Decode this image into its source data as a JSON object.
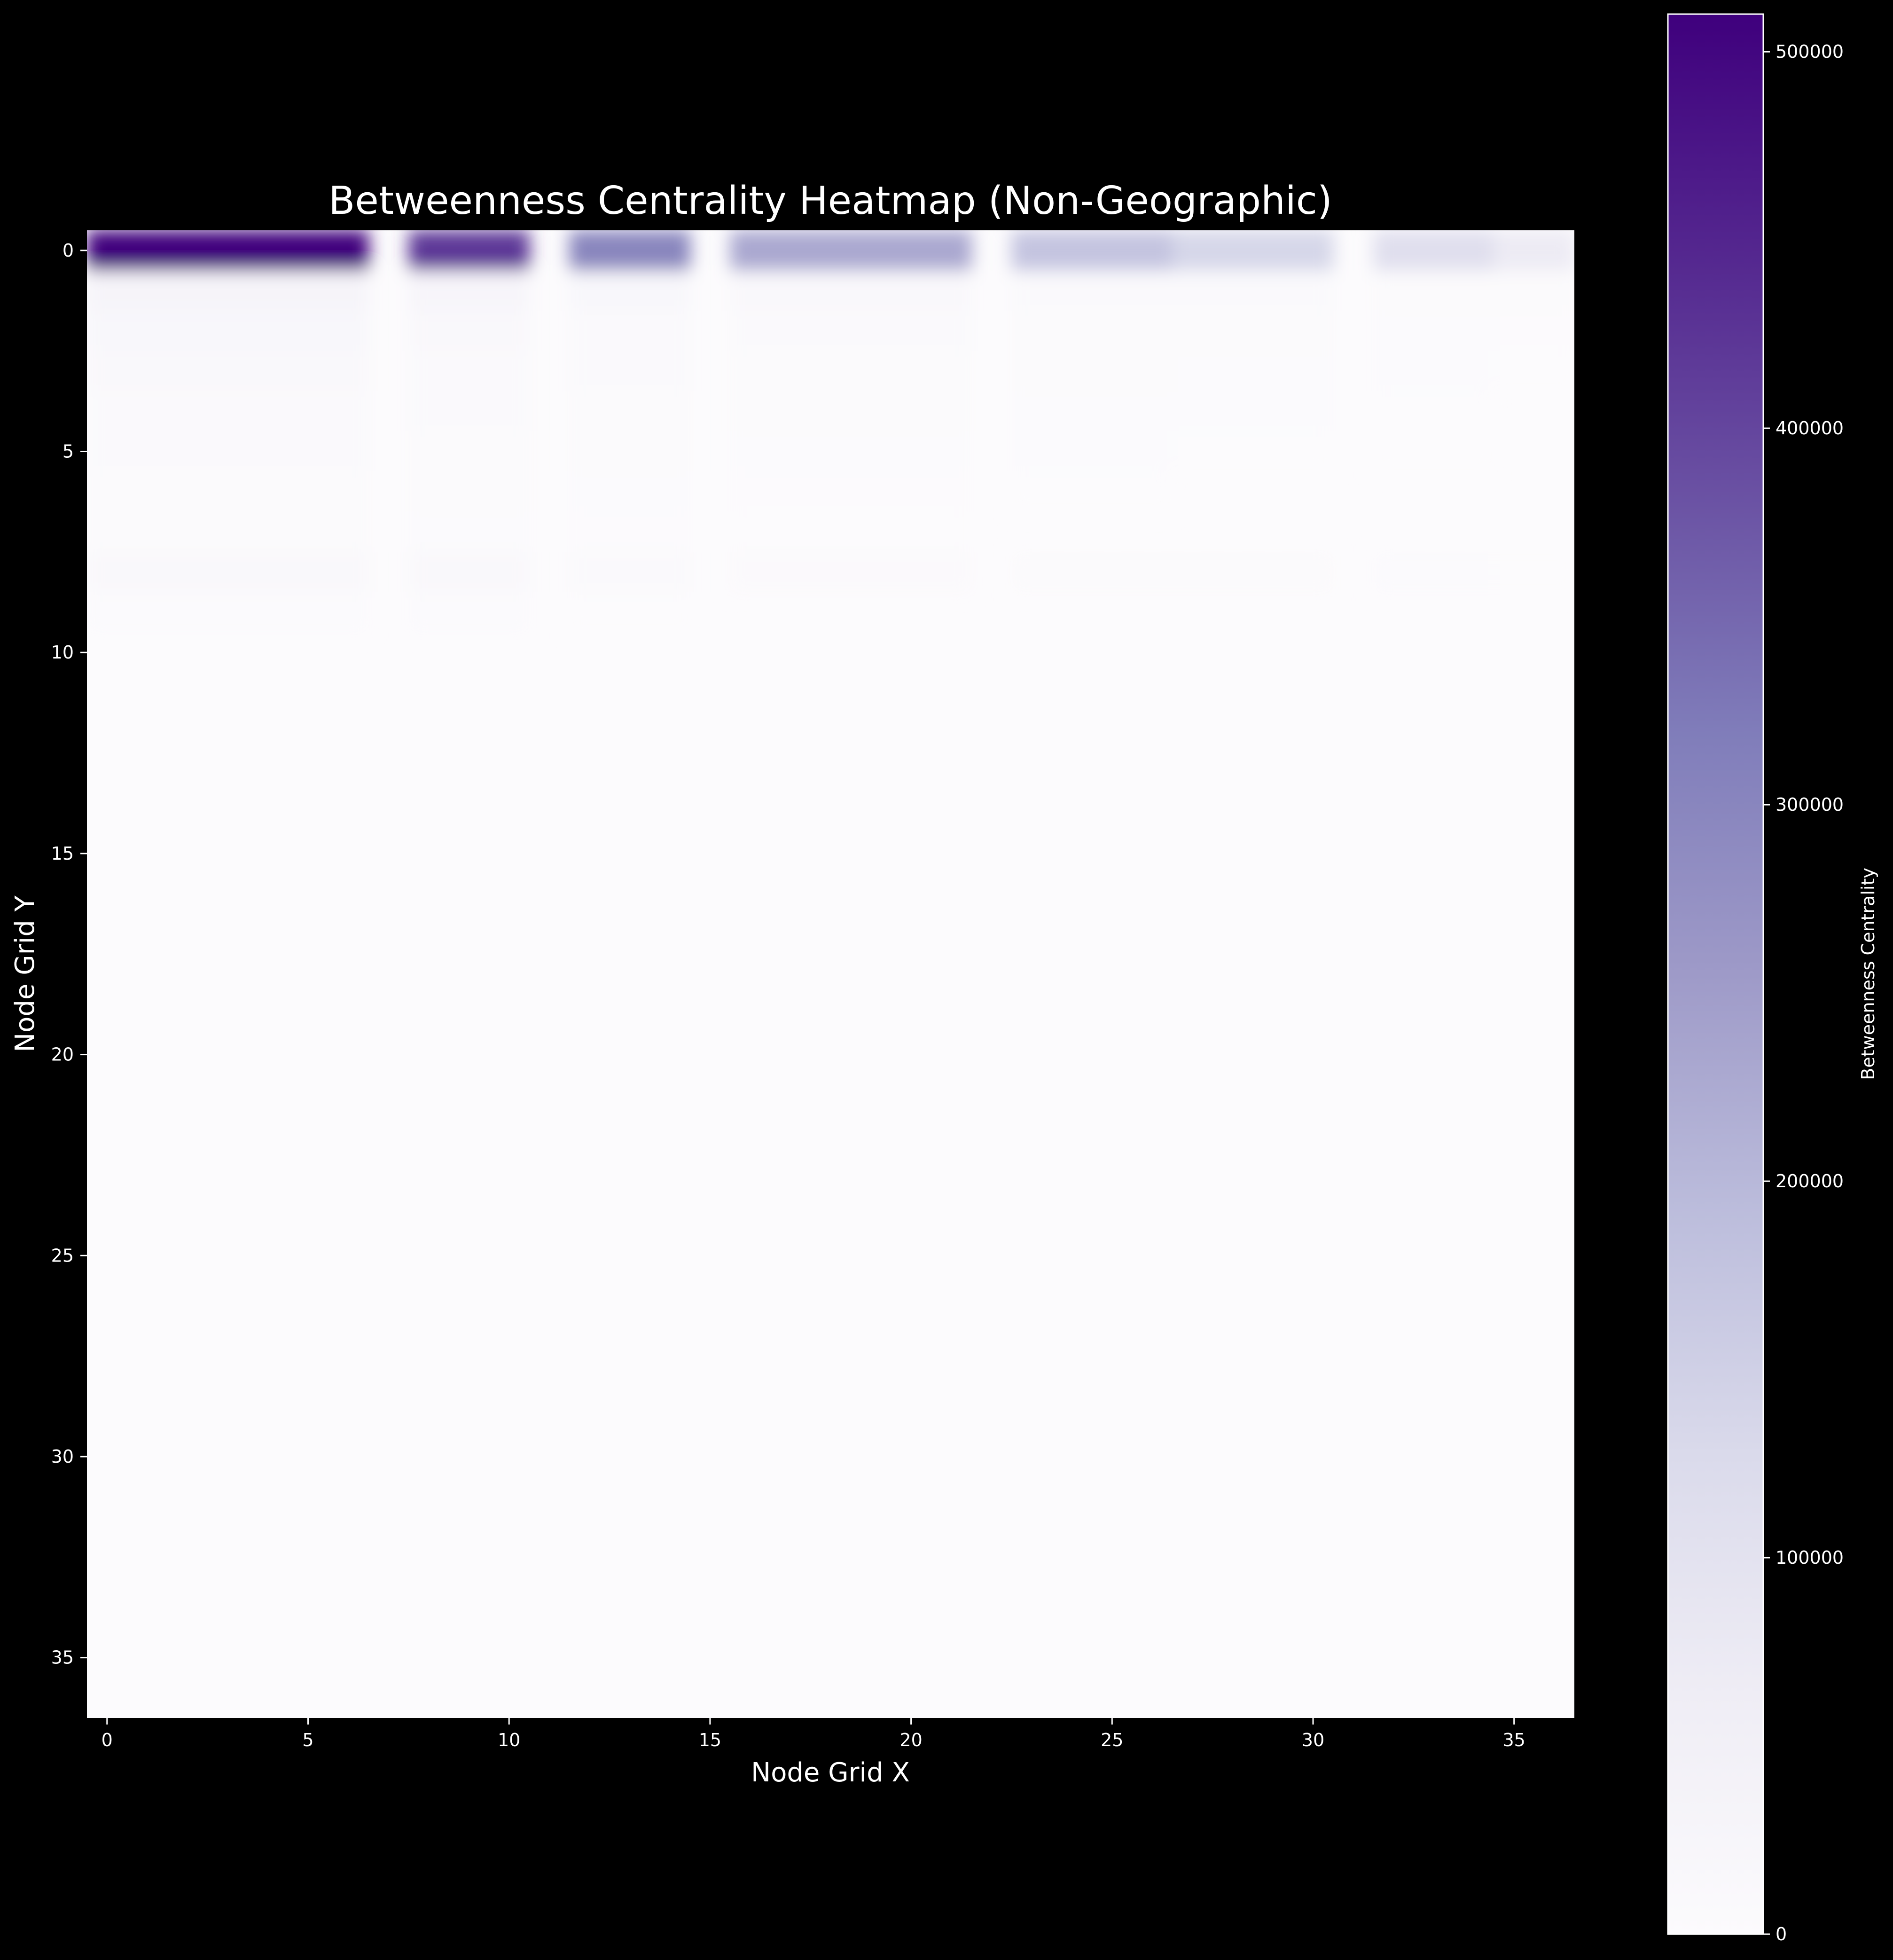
{
  "chart_data": {
    "type": "heatmap",
    "title": "Betweenness Centrality Heatmap (Non-Geographic)",
    "xlabel": "Node Grid X",
    "ylabel": "Node Grid Y",
    "grid": false,
    "colormap": "Purples",
    "colors": {
      "background": "#000000",
      "low": "#fcfbfd",
      "high": "#3f007d",
      "text": "#ffffff"
    },
    "interpolation": "bicubic",
    "xlim": [
      -0.5,
      36.5
    ],
    "ylim": [
      36.5,
      -0.5
    ],
    "xticks": [
      0,
      5,
      10,
      15,
      20,
      25,
      30,
      35
    ],
    "yticks": [
      0,
      5,
      10,
      15,
      20,
      25,
      30,
      35
    ],
    "grid_size": [
      37,
      37
    ],
    "segments": [
      {
        "x": [
          0,
          6
        ],
        "peak": 510000
      },
      {
        "x": [
          8,
          10
        ],
        "peak": 420000
      },
      {
        "x": [
          12,
          14
        ],
        "peak": 300000
      },
      {
        "x": [
          16,
          21
        ],
        "peak": 230000
      },
      {
        "x": [
          23,
          26
        ],
        "peak": 175000
      },
      {
        "x": [
          27,
          30
        ],
        "peak": 135000
      },
      {
        "x": [
          32,
          34
        ],
        "peak": 110000
      },
      {
        "x": [
          35,
          36
        ],
        "peak": 70000
      }
    ],
    "gaps_x": [
      7,
      11,
      15,
      22,
      31
    ],
    "row_profile": [
      {
        "y": 0,
        "fraction": 1.0
      },
      {
        "y": 1,
        "fraction": 0.06
      },
      {
        "y": 2,
        "fraction": 0.035
      },
      {
        "y": 3,
        "fraction": 0.025
      },
      {
        "y": 4,
        "fraction": 0.02
      },
      {
        "y": 5,
        "fraction": 0.015
      },
      {
        "y": 6,
        "fraction": 0.01
      },
      {
        "y": 7,
        "fraction": 0.008
      },
      {
        "y": 8,
        "fraction": 0.03
      },
      {
        "y": 9,
        "fraction": 0.006
      }
    ],
    "colorbar": {
      "label": "Betweenness Centrality",
      "min": 0,
      "max": 510000,
      "ticks": [
        0,
        100000,
        200000,
        300000,
        400000,
        500000
      ]
    }
  }
}
